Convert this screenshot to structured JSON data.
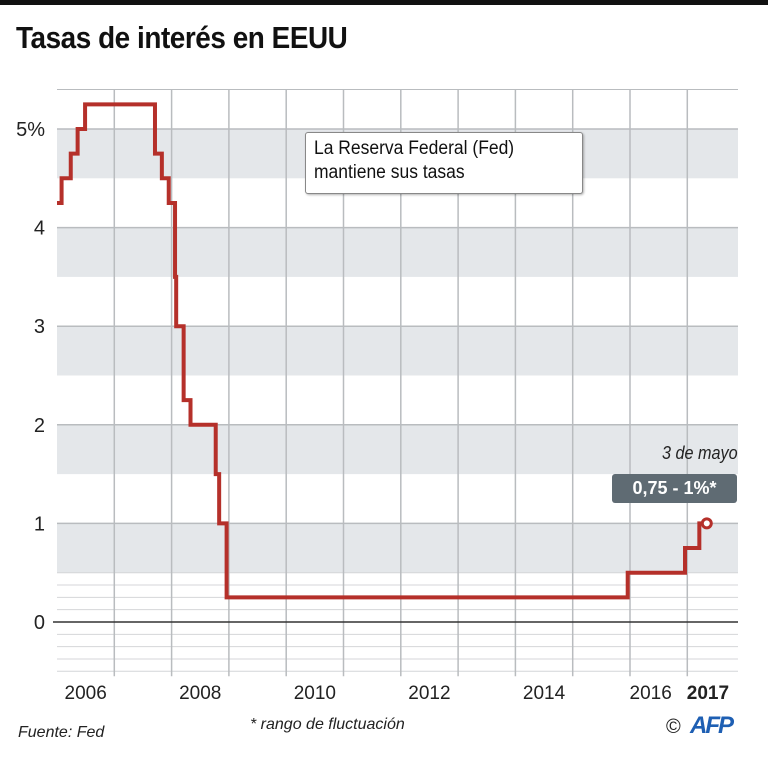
{
  "title": "Tasas de interés en EEUU",
  "annotation": {
    "line1": "La Reserva Federal (Fed)",
    "line2": "mantiene sus tasas"
  },
  "callout": {
    "date": "3 de mayo",
    "value": "0,75 - 1%*"
  },
  "footer": {
    "source": "Fuente: Fed",
    "note": "* rango de fluctuación",
    "copyright": "©",
    "logo": "AFP"
  },
  "colors": {
    "line": "#b5302a",
    "band": "#e4e7ea",
    "grid": "#b9bcbf",
    "badge": "#5f6b73"
  },
  "chart_data": {
    "type": "line",
    "step": true,
    "xlim": [
      2006.0,
      2017.88
    ],
    "ylim": [
      -0.55,
      5.4
    ],
    "grid": true,
    "yticks": [
      {
        "v": 0,
        "label": "0"
      },
      {
        "v": 1,
        "label": "1"
      },
      {
        "v": 2,
        "label": "2"
      },
      {
        "v": 3,
        "label": "3"
      },
      {
        "v": 4,
        "label": "4"
      },
      {
        "v": 5,
        "label": "5%"
      }
    ],
    "xticks": [
      {
        "v": 2006.5,
        "label": "2006"
      },
      {
        "v": 2008.5,
        "label": "2008"
      },
      {
        "v": 2010.5,
        "label": "2010"
      },
      {
        "v": 2012.5,
        "label": "2012"
      },
      {
        "v": 2014.5,
        "label": "2014"
      },
      {
        "v": 2016.5,
        "label": "2016"
      },
      {
        "v": 2017.5,
        "label": "2017",
        "bold": true
      }
    ],
    "series": [
      {
        "x": [
          2006.0,
          2006.08,
          2006.24,
          2006.36,
          2006.49,
          2007.71,
          2007.83,
          2007.95,
          2008.06,
          2008.08,
          2008.21,
          2008.33,
          2008.77,
          2008.83,
          2008.96,
          2015.96,
          2016.96,
          2017.21,
          2017.34
        ],
        "y": [
          4.25,
          4.5,
          4.75,
          5.0,
          5.25,
          4.75,
          4.5,
          4.25,
          3.5,
          3.0,
          2.25,
          2.0,
          1.5,
          1.0,
          0.25,
          0.5,
          0.75,
          1.0,
          1.0
        ]
      }
    ]
  }
}
